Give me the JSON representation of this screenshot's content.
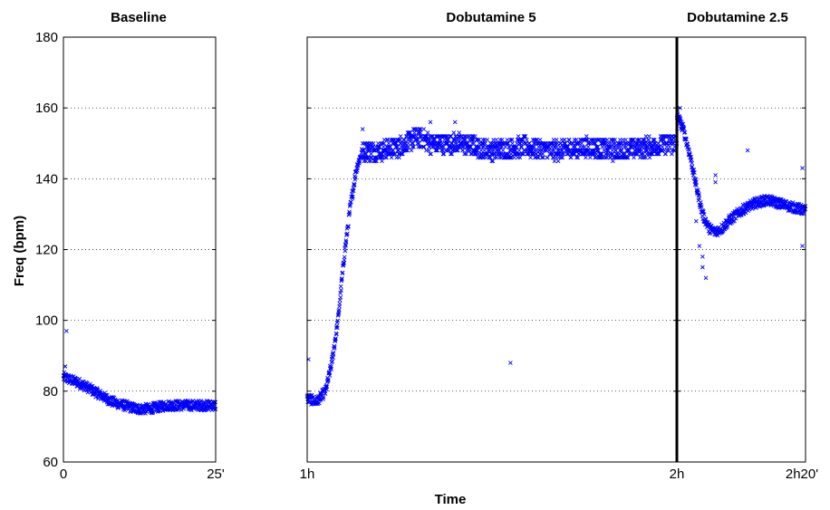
{
  "chart_data": {
    "type": "scatter",
    "ylabel": "Freq (bpm)",
    "xlabel": "Time",
    "ylim": [
      60,
      180
    ],
    "yticks": [
      60,
      80,
      100,
      120,
      140,
      160,
      180
    ],
    "grid": true,
    "marker": "x",
    "marker_color": "#0000ff",
    "panels": [
      {
        "title": "Baseline",
        "xlim_min": [
          0,
          25
        ],
        "xtick_labels": [
          "0",
          "25'"
        ],
        "series_anchor_points_min_bpm": [
          [
            0,
            84
          ],
          [
            3,
            82
          ],
          [
            6,
            79
          ],
          [
            8,
            77
          ],
          [
            10,
            76
          ],
          [
            12,
            75
          ],
          [
            14,
            75
          ],
          [
            17,
            76
          ],
          [
            20,
            76
          ],
          [
            23,
            76
          ],
          [
            25,
            76
          ]
        ],
        "outliers_min_bpm": [
          [
            0.5,
            97
          ],
          [
            0.3,
            87
          ]
        ]
      },
      {
        "title": "Dobutamine 5",
        "xlim_min": [
          60,
          120
        ],
        "xtick_labels": [
          "1h",
          "2h"
        ],
        "series_anchor_points_min_bpm": [
          [
            60,
            78
          ],
          [
            61.5,
            77
          ],
          [
            63,
            80
          ],
          [
            64,
            88
          ],
          [
            65,
            100
          ],
          [
            66,
            118
          ],
          [
            67,
            132
          ],
          [
            68,
            143
          ],
          [
            69,
            148
          ],
          [
            72,
            148
          ],
          [
            75,
            149
          ],
          [
            78,
            152
          ],
          [
            80,
            150
          ],
          [
            85,
            150
          ],
          [
            90,
            148
          ],
          [
            95,
            149
          ],
          [
            100,
            148
          ],
          [
            105,
            149
          ],
          [
            110,
            148
          ],
          [
            115,
            149
          ],
          [
            120,
            150
          ]
        ],
        "outliers_min_bpm": [
          [
            60.2,
            89
          ],
          [
            93,
            88
          ],
          [
            69,
            154
          ],
          [
            80,
            156
          ],
          [
            84,
            156
          ]
        ]
      },
      {
        "title": "Dobutamine 2.5",
        "xlim_min": [
          120,
          140
        ],
        "xtick_labels": [
          "",
          "2h20'"
        ],
        "series_anchor_points_min_bpm": [
          [
            120,
            158
          ],
          [
            121,
            154
          ],
          [
            122,
            147
          ],
          [
            123,
            138
          ],
          [
            124,
            130
          ],
          [
            125,
            126
          ],
          [
            126,
            125
          ],
          [
            127,
            126
          ],
          [
            128,
            128
          ],
          [
            130,
            131
          ],
          [
            132,
            133
          ],
          [
            134,
            134
          ],
          [
            136,
            133
          ],
          [
            138,
            132
          ],
          [
            140,
            131
          ]
        ],
        "outliers_min_bpm": [
          [
            120.5,
            160
          ],
          [
            123,
            128
          ],
          [
            124,
            115
          ],
          [
            124.5,
            112
          ],
          [
            124,
            118
          ],
          [
            123.5,
            121
          ],
          [
            126,
            141
          ],
          [
            131,
            148
          ],
          [
            139.5,
            143
          ],
          [
            139.5,
            121
          ],
          [
            126,
            139
          ]
        ]
      }
    ]
  }
}
